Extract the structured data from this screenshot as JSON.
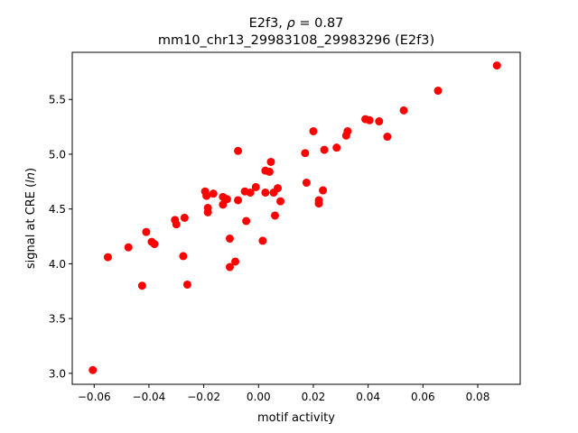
{
  "chart_data": {
    "type": "scatter",
    "title_line1": "E2f3, ρ = 0.87",
    "title_line2": "mm10_chr13_29983108_29983296 (E2f3)",
    "xlabel": "motif activity",
    "ylabel": "signal at CRE (ln)",
    "xlim": [
      -0.068,
      0.0955
    ],
    "ylim": [
      2.9,
      5.93
    ],
    "xticks": [
      -0.06,
      -0.04,
      -0.02,
      0.0,
      0.02,
      0.04,
      0.06,
      0.08
    ],
    "xtick_labels": [
      "−0.06",
      "−0.04",
      "−0.02",
      "0.00",
      "0.02",
      "0.04",
      "0.06",
      "0.08"
    ],
    "yticks": [
      3.0,
      3.5,
      4.0,
      4.5,
      5.0,
      5.5
    ],
    "ytick_labels": [
      "3.0",
      "3.5",
      "4.0",
      "4.5",
      "5.0",
      "5.5"
    ],
    "grid": false,
    "marker_color": "#ff0000",
    "series": [
      {
        "points": [
          [
            -0.0605,
            3.03
          ],
          [
            -0.055,
            4.06
          ],
          [
            -0.0475,
            4.15
          ],
          [
            -0.0425,
            3.8
          ],
          [
            -0.041,
            4.29
          ],
          [
            -0.039,
            4.2
          ],
          [
            -0.038,
            4.18
          ],
          [
            -0.0305,
            4.4
          ],
          [
            -0.03,
            4.36
          ],
          [
            -0.0275,
            4.07
          ],
          [
            -0.027,
            4.42
          ],
          [
            -0.026,
            3.81
          ],
          [
            -0.0195,
            4.66
          ],
          [
            -0.019,
            4.62
          ],
          [
            -0.0185,
            4.51
          ],
          [
            -0.0185,
            4.47
          ],
          [
            -0.0165,
            4.64
          ],
          [
            -0.013,
            4.61
          ],
          [
            -0.013,
            4.54
          ],
          [
            -0.0115,
            4.59
          ],
          [
            -0.0105,
            4.23
          ],
          [
            -0.0105,
            3.97
          ],
          [
            -0.0085,
            4.02
          ],
          [
            -0.0075,
            5.03
          ],
          [
            -0.0075,
            4.58
          ],
          [
            -0.005,
            4.66
          ],
          [
            -0.0045,
            4.39
          ],
          [
            -0.003,
            4.65
          ],
          [
            -0.001,
            4.7
          ],
          [
            0.0015,
            4.21
          ],
          [
            0.0025,
            4.85
          ],
          [
            0.0025,
            4.65
          ],
          [
            0.004,
            4.84
          ],
          [
            0.0045,
            4.93
          ],
          [
            0.0055,
            4.65
          ],
          [
            0.006,
            4.44
          ],
          [
            0.007,
            4.69
          ],
          [
            0.008,
            4.57
          ],
          [
            0.017,
            5.01
          ],
          [
            0.0175,
            4.74
          ],
          [
            0.02,
            5.21
          ],
          [
            0.022,
            4.55
          ],
          [
            0.022,
            4.58
          ],
          [
            0.0235,
            4.67
          ],
          [
            0.024,
            5.04
          ],
          [
            0.0285,
            5.06
          ],
          [
            0.032,
            5.17
          ],
          [
            0.0325,
            5.21
          ],
          [
            0.039,
            5.32
          ],
          [
            0.0405,
            5.31
          ],
          [
            0.044,
            5.3
          ],
          [
            0.047,
            5.16
          ],
          [
            0.053,
            5.4
          ],
          [
            0.0655,
            5.58
          ],
          [
            0.087,
            5.81
          ]
        ]
      }
    ]
  }
}
